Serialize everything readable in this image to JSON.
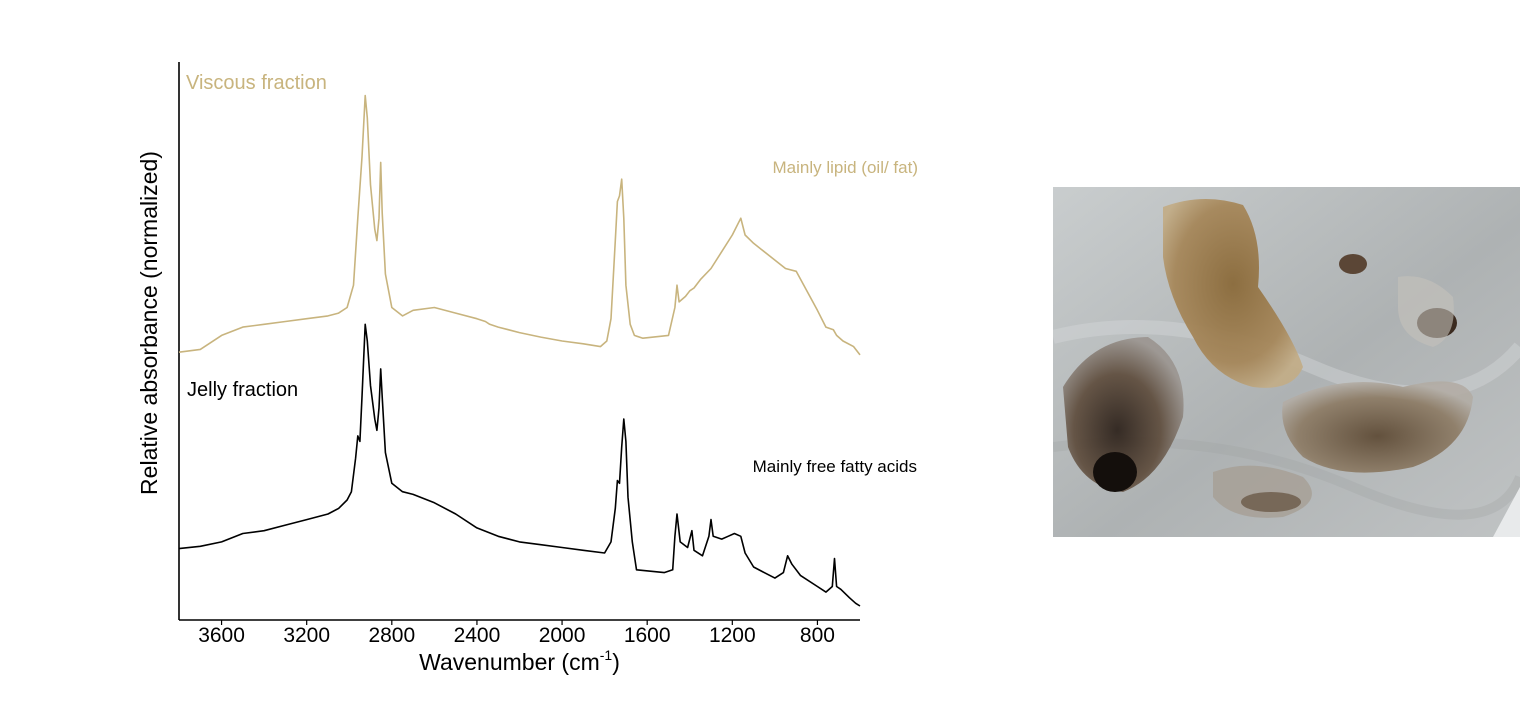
{
  "chart_data": {
    "type": "line",
    "xlabel": "Wavenumber (cm",
    "xlabel_sup": "-1",
    "xlabel_close": ")",
    "ylabel": "Relative absorbance (normalized)",
    "xlim": [
      3800,
      600
    ],
    "x_reversed": true,
    "ylim": [
      0,
      1
    ],
    "xticks": [
      3600,
      3200,
      2800,
      2400,
      2000,
      1600,
      1200,
      800
    ],
    "grid": false,
    "series": [
      {
        "name": "Viscous fraction",
        "color": "#c8b47e",
        "annotation": "Mainly lipid (oil/ fat)",
        "points": [
          [
            3800,
            0.48
          ],
          [
            3700,
            0.485
          ],
          [
            3600,
            0.51
          ],
          [
            3500,
            0.525
          ],
          [
            3400,
            0.53
          ],
          [
            3300,
            0.535
          ],
          [
            3200,
            0.54
          ],
          [
            3100,
            0.545
          ],
          [
            3050,
            0.55
          ],
          [
            3010,
            0.56
          ],
          [
            2980,
            0.6
          ],
          [
            2960,
            0.72
          ],
          [
            2940,
            0.83
          ],
          [
            2925,
            0.94
          ],
          [
            2915,
            0.9
          ],
          [
            2900,
            0.78
          ],
          [
            2880,
            0.7
          ],
          [
            2870,
            0.68
          ],
          [
            2860,
            0.72
          ],
          [
            2852,
            0.82
          ],
          [
            2845,
            0.73
          ],
          [
            2830,
            0.62
          ],
          [
            2800,
            0.56
          ],
          [
            2750,
            0.545
          ],
          [
            2700,
            0.555
          ],
          [
            2600,
            0.56
          ],
          [
            2500,
            0.55
          ],
          [
            2400,
            0.54
          ],
          [
            2360,
            0.535
          ],
          [
            2340,
            0.53
          ],
          [
            2300,
            0.525
          ],
          [
            2200,
            0.515
          ],
          [
            2100,
            0.507
          ],
          [
            2000,
            0.5
          ],
          [
            1900,
            0.495
          ],
          [
            1820,
            0.49
          ],
          [
            1790,
            0.5
          ],
          [
            1770,
            0.54
          ],
          [
            1750,
            0.68
          ],
          [
            1740,
            0.75
          ],
          [
            1730,
            0.76
          ],
          [
            1720,
            0.79
          ],
          [
            1710,
            0.72
          ],
          [
            1700,
            0.6
          ],
          [
            1680,
            0.53
          ],
          [
            1660,
            0.51
          ],
          [
            1620,
            0.505
          ],
          [
            1500,
            0.51
          ],
          [
            1470,
            0.56
          ],
          [
            1460,
            0.6
          ],
          [
            1450,
            0.57
          ],
          [
            1420,
            0.58
          ],
          [
            1400,
            0.59
          ],
          [
            1380,
            0.595
          ],
          [
            1350,
            0.61
          ],
          [
            1300,
            0.63
          ],
          [
            1250,
            0.66
          ],
          [
            1200,
            0.69
          ],
          [
            1160,
            0.72
          ],
          [
            1140,
            0.69
          ],
          [
            1100,
            0.675
          ],
          [
            1000,
            0.645
          ],
          [
            950,
            0.63
          ],
          [
            900,
            0.625
          ],
          [
            850,
            0.59
          ],
          [
            800,
            0.555
          ],
          [
            760,
            0.525
          ],
          [
            725,
            0.52
          ],
          [
            710,
            0.51
          ],
          [
            680,
            0.5
          ],
          [
            630,
            0.49
          ],
          [
            600,
            0.475
          ]
        ]
      },
      {
        "name": "Jelly fraction",
        "color": "#000000",
        "annotation": "Mainly free fatty acids",
        "points": [
          [
            3800,
            0.128
          ],
          [
            3700,
            0.132
          ],
          [
            3600,
            0.14
          ],
          [
            3500,
            0.155
          ],
          [
            3400,
            0.16
          ],
          [
            3300,
            0.17
          ],
          [
            3200,
            0.18
          ],
          [
            3100,
            0.19
          ],
          [
            3050,
            0.2
          ],
          [
            3010,
            0.215
          ],
          [
            2990,
            0.23
          ],
          [
            2970,
            0.29
          ],
          [
            2960,
            0.33
          ],
          [
            2950,
            0.32
          ],
          [
            2940,
            0.4
          ],
          [
            2925,
            0.53
          ],
          [
            2915,
            0.5
          ],
          [
            2900,
            0.42
          ],
          [
            2880,
            0.36
          ],
          [
            2870,
            0.34
          ],
          [
            2860,
            0.38
          ],
          [
            2852,
            0.45
          ],
          [
            2845,
            0.4
          ],
          [
            2830,
            0.3
          ],
          [
            2800,
            0.245
          ],
          [
            2750,
            0.23
          ],
          [
            2700,
            0.225
          ],
          [
            2600,
            0.21
          ],
          [
            2500,
            0.19
          ],
          [
            2400,
            0.165
          ],
          [
            2300,
            0.15
          ],
          [
            2200,
            0.14
          ],
          [
            2100,
            0.135
          ],
          [
            2000,
            0.13
          ],
          [
            1900,
            0.125
          ],
          [
            1800,
            0.12
          ],
          [
            1770,
            0.14
          ],
          [
            1750,
            0.2
          ],
          [
            1740,
            0.25
          ],
          [
            1730,
            0.245
          ],
          [
            1720,
            0.31
          ],
          [
            1710,
            0.36
          ],
          [
            1700,
            0.32
          ],
          [
            1690,
            0.22
          ],
          [
            1670,
            0.14
          ],
          [
            1650,
            0.09
          ],
          [
            1520,
            0.085
          ],
          [
            1480,
            0.09
          ],
          [
            1470,
            0.15
          ],
          [
            1460,
            0.19
          ],
          [
            1445,
            0.14
          ],
          [
            1410,
            0.13
          ],
          [
            1390,
            0.16
          ],
          [
            1380,
            0.125
          ],
          [
            1340,
            0.115
          ],
          [
            1310,
            0.15
          ],
          [
            1300,
            0.18
          ],
          [
            1290,
            0.15
          ],
          [
            1250,
            0.145
          ],
          [
            1220,
            0.15
          ],
          [
            1190,
            0.155
          ],
          [
            1160,
            0.15
          ],
          [
            1140,
            0.12
          ],
          [
            1100,
            0.095
          ],
          [
            1050,
            0.085
          ],
          [
            1000,
            0.075
          ],
          [
            960,
            0.085
          ],
          [
            940,
            0.115
          ],
          [
            920,
            0.1
          ],
          [
            880,
            0.08
          ],
          [
            800,
            0.06
          ],
          [
            760,
            0.05
          ],
          [
            730,
            0.06
          ],
          [
            720,
            0.11
          ],
          [
            710,
            0.06
          ],
          [
            690,
            0.055
          ],
          [
            650,
            0.04
          ],
          [
            620,
            0.03
          ],
          [
            600,
            0.025
          ]
        ]
      }
    ]
  },
  "photo": {
    "description_icon": "microscope-photo",
    "background": "#b9bcbd"
  }
}
